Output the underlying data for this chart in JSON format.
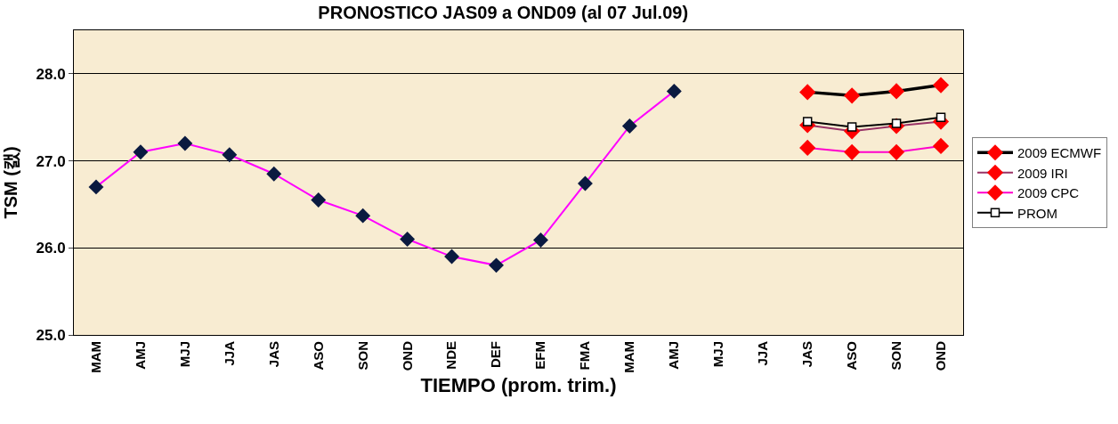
{
  "chart_data": {
    "type": "line",
    "title": "PRONOSTICO JAS09 a OND09 (al 07 Jul.09)",
    "xlabel": "TIEMPO (prom. trim.)",
    "ylabel": "TSM (캜)",
    "categories": [
      "MAM",
      "AMJ",
      "MJJ",
      "JJA",
      "JAS",
      "ASO",
      "SON",
      "OND",
      "NDE",
      "DEF",
      "EFM",
      "FMA",
      "MAM",
      "AMJ",
      "MJJ",
      "JJA",
      "JAS",
      "ASO",
      "SON",
      "OND"
    ],
    "series": [
      {
        "color": "#ff00ff",
        "marker": "diamond",
        "values": [
          26.7,
          27.1,
          27.2,
          27.07,
          26.85,
          26.55,
          26.37,
          26.1,
          25.9,
          25.8,
          26.09,
          26.74,
          27.4,
          27.8,
          null,
          null,
          null,
          null,
          null,
          null
        ]
      },
      {
        "name": "2009 ECMWF",
        "color": "#000000",
        "marker": "diamond",
        "values": [
          null,
          null,
          null,
          null,
          null,
          null,
          null,
          null,
          null,
          null,
          null,
          null,
          null,
          null,
          null,
          null,
          27.79,
          27.75,
          27.8,
          27.87
        ]
      },
      {
        "name": "2009 IRI",
        "color": "#993366",
        "marker": "diamond",
        "values": [
          null,
          null,
          null,
          null,
          null,
          null,
          null,
          null,
          null,
          null,
          null,
          null,
          null,
          null,
          null,
          null,
          27.41,
          27.34,
          27.4,
          27.45
        ]
      },
      {
        "name": "2009 CPC",
        "color": "#ff00cc",
        "marker": "diamond",
        "values": [
          null,
          null,
          null,
          null,
          null,
          null,
          null,
          null,
          null,
          null,
          null,
          null,
          null,
          null,
          null,
          null,
          27.15,
          27.1,
          27.1,
          27.17
        ]
      },
      {
        "name": "PROM",
        "color": "#000000",
        "marker": "square",
        "values": [
          null,
          null,
          null,
          null,
          null,
          null,
          null,
          null,
          null,
          null,
          null,
          null,
          null,
          null,
          null,
          null,
          27.45,
          27.39,
          27.43,
          27.5
        ]
      }
    ],
    "ylim": [
      25,
      28.5
    ],
    "yticks": [
      {
        "value": 25,
        "label": "25.0"
      },
      {
        "value": 26,
        "label": "26.0"
      },
      {
        "value": 27,
        "label": "27.0"
      },
      {
        "value": 28,
        "label": "28.0"
      }
    ],
    "grid": "y",
    "legend": "right",
    "line_style": "solid"
  }
}
